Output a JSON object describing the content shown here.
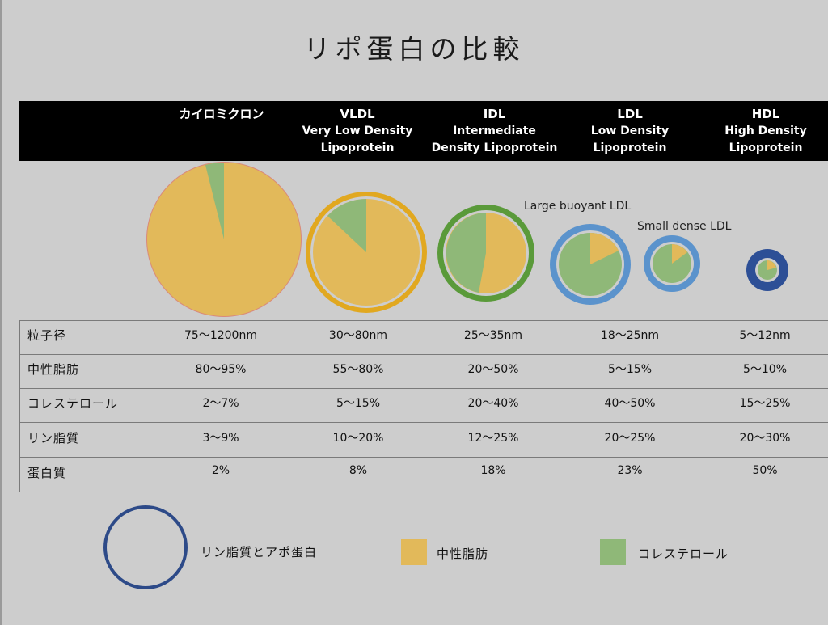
{
  "title": "リポ蛋白の比較",
  "columns": [
    {
      "name": "カイロミクロン",
      "sub1": "",
      "sub2": ""
    },
    {
      "name": "VLDL",
      "sub1": "Very Low Density",
      "sub2": "Lipoprotein"
    },
    {
      "name": "IDL",
      "sub1": "Intermediate",
      "sub2": "Density Lipoprotein"
    },
    {
      "name": "LDL",
      "sub1": "Low Density",
      "sub2": "Lipoprotein"
    },
    {
      "name": "HDL",
      "sub1": "High Density",
      "sub2": "Lipoprotein"
    }
  ],
  "annotations": {
    "large_ldl": "Large buoyant LDL",
    "small_ldl": "Small dense LDL"
  },
  "rows": [
    {
      "label": "粒子径",
      "values": [
        "75〜1200nm",
        "30〜80nm",
        "25〜35nm",
        "18〜25nm",
        "5〜12nm"
      ]
    },
    {
      "label": "中性脂肪",
      "values": [
        "80〜95%",
        "55〜80%",
        "20〜50%",
        "5〜15%",
        "5〜10%"
      ]
    },
    {
      "label": "コレステロール",
      "values": [
        "2〜7%",
        "5〜15%",
        "20〜40%",
        "40〜50%",
        "15〜25%"
      ]
    },
    {
      "label": "リン脂質",
      "values": [
        "3〜9%",
        "10〜20%",
        "12〜25%",
        "20〜25%",
        "20〜30%"
      ]
    },
    {
      "label": "蛋白質",
      "values": [
        "2%",
        "8%",
        "18%",
        "23%",
        "50%"
      ]
    }
  ],
  "legend": {
    "ring_label": "リン脂質とアポ蛋白",
    "triglyceride_label": "中性脂肪",
    "cholesterol_label": "コレステロール"
  },
  "colors": {
    "triglyceride": "#e2b95a",
    "cholesterol": "#8fb878",
    "ring_vldl": "#e1a820",
    "ring_idl": "#5a9a3a",
    "ring_ldl": "#5b93cc",
    "ring_hdl": "#2d4f96",
    "legend_ring": "#2d4a88"
  }
}
